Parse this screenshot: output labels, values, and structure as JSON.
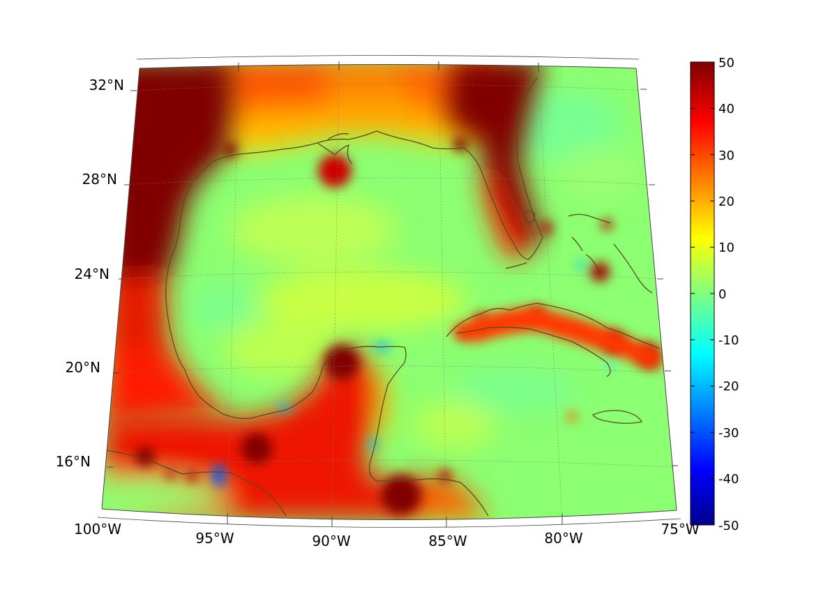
{
  "map": {
    "projection": "conic",
    "lat_range": [
      14,
      33
    ],
    "lon_range": [
      -100,
      -75
    ],
    "graticule": "dotted gray",
    "coastlines": "dark olive",
    "lat_ticks": [
      {
        "value": 16,
        "label": "16°N"
      },
      {
        "value": 20,
        "label": "20°N"
      },
      {
        "value": 24,
        "label": "24°N"
      },
      {
        "value": 28,
        "label": "28°N"
      },
      {
        "value": 32,
        "label": "32°N"
      }
    ],
    "lon_ticks": [
      {
        "value": -100,
        "label": "100°W"
      },
      {
        "value": -95,
        "label": "95°W"
      },
      {
        "value": -90,
        "label": "90°W"
      },
      {
        "value": -85,
        "label": "85°W"
      },
      {
        "value": -80,
        "label": "80°W"
      },
      {
        "value": -75,
        "label": "75°W"
      }
    ]
  },
  "colorbar": {
    "colormap": "jet",
    "min": -50,
    "max": 50,
    "ticks": [
      "50",
      "40",
      "30",
      "20",
      "10",
      "0",
      "-10",
      "-20",
      "-30",
      "-40",
      "-50"
    ],
    "colors": [
      "#00008f",
      "#0000ff",
      "#00ffff",
      "#80ff80",
      "#ffff00",
      "#ff0000",
      "#800000"
    ]
  }
}
